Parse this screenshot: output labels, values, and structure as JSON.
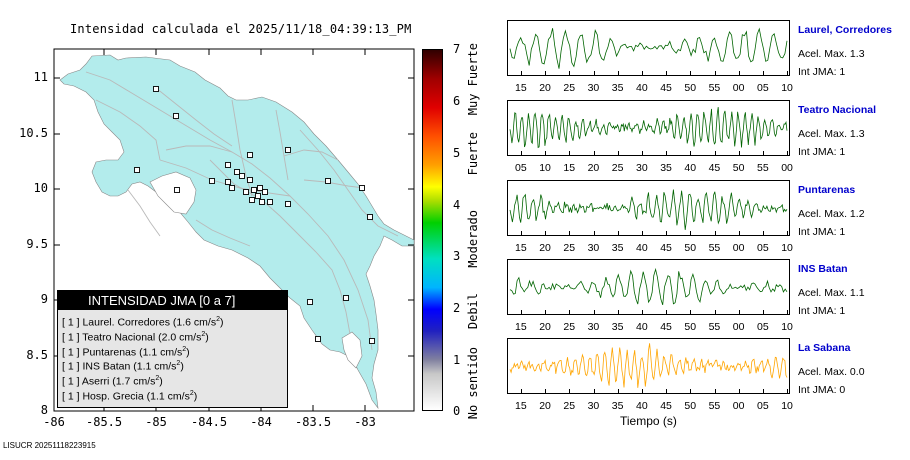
{
  "title": "Intensidad calculada el 2025/11/18_04:39:13_PM",
  "footer": "LISUCR 20251118223915",
  "map": {
    "y_ticks": [
      "11",
      "10.5",
      "10",
      "9.5",
      "9",
      "8.5",
      "8"
    ],
    "x_ticks": [
      "-86",
      "-85.5",
      "-85",
      "-84.5",
      "-84",
      "-83.5",
      "-83"
    ],
    "land_color": "#b3ecec",
    "road_color": "#b9b9b9"
  },
  "legend": {
    "header": "INTENSIDAD JMA [0 a 7]",
    "rows": [
      {
        "level": "[ 1 ]",
        "name": "Laurel. Corredores",
        "value": "(1.6 cm/s",
        "exp": "2",
        "close": ")"
      },
      {
        "level": "[ 1 ]",
        "name": "Teatro Nacional",
        "value": "(2.0 cm/s",
        "exp": "2",
        "close": ")"
      },
      {
        "level": "[ 1 ]",
        "name": "Puntarenas",
        "value": "(1.1 cm/s",
        "exp": "2",
        "close": ")"
      },
      {
        "level": "[ 1 ]",
        "name": "INS Batan",
        "value": "(1.1 cm/s",
        "exp": "2",
        "close": ")"
      },
      {
        "level": "[ 1 ]",
        "name": "Aserri",
        "value": "(1.7 cm/s",
        "exp": "2",
        "close": ")"
      },
      {
        "level": "[ 1 ]",
        "name": "Hosp. Grecia",
        "value": "(1.1 cm/s",
        "exp": "2",
        "close": ")"
      }
    ]
  },
  "colorbar": {
    "ticks": [
      "7",
      "6",
      "5",
      "4",
      "3",
      "2",
      "1",
      "0"
    ],
    "labels": [
      "Muy Fuerte",
      "Fuerte",
      "Moderado",
      "Debil",
      "No sentido"
    ]
  },
  "waveforms": [
    {
      "name": "Laurel, Corredores",
      "acel": "Acel. Max. 1.3",
      "int": "Int JMA: 1",
      "color": "#006400",
      "ticks": [
        "15",
        "20",
        "25",
        "30",
        "35",
        "40",
        "45",
        "50",
        "55",
        "00",
        "05",
        "10"
      ]
    },
    {
      "name": "Teatro Nacional",
      "acel": "Acel. Max. 1.3",
      "int": "Int JMA: 1",
      "color": "#006400",
      "ticks": [
        "05",
        "10",
        "15",
        "20",
        "25",
        "30",
        "35",
        "40",
        "45",
        "50",
        "55",
        "00"
      ]
    },
    {
      "name": "Puntarenas",
      "acel": "Acel. Max. 1.2",
      "int": "Int JMA: 1",
      "color": "#006400",
      "ticks": [
        "15",
        "20",
        "25",
        "30",
        "35",
        "40",
        "45",
        "50",
        "55",
        "00",
        "05",
        "10"
      ]
    },
    {
      "name": "INS Batan",
      "acel": "Acel. Max. 1.1",
      "int": "Int JMA: 1",
      "color": "#006400",
      "ticks": [
        "15",
        "20",
        "25",
        "30",
        "35",
        "40",
        "45",
        "50",
        "55",
        "00",
        "05",
        "10"
      ]
    },
    {
      "name": "La Sabana",
      "acel": "Acel. Max. 0.0",
      "int": "Int JMA: 0",
      "color": "#ffa500",
      "ticks": [
        "15",
        "20",
        "25",
        "30",
        "35",
        "40",
        "45",
        "50",
        "55",
        "00",
        "05",
        "10"
      ]
    }
  ],
  "xaxis_label": "Tiempo (s)"
}
